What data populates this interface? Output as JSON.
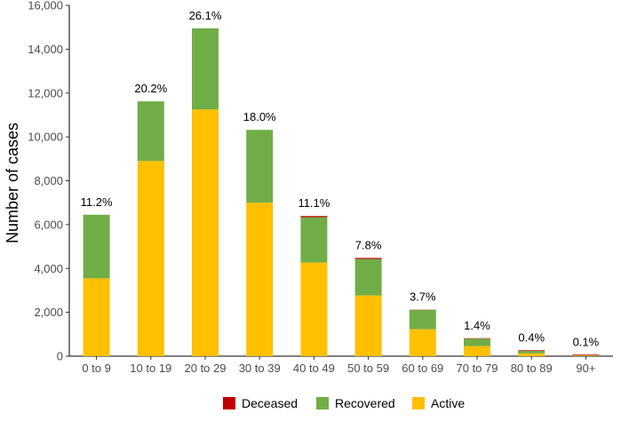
{
  "chart_data": {
    "type": "bar",
    "stacked": true,
    "title": "",
    "xlabel": "",
    "ylabel": "Number of cases",
    "ylim": [
      0,
      16000
    ],
    "yticks": [
      0,
      2000,
      4000,
      6000,
      8000,
      10000,
      12000,
      14000,
      16000
    ],
    "ytick_labels": [
      "0",
      "2,000",
      "4,000",
      "6,000",
      "8,000",
      "10,000",
      "12,000",
      "14,000",
      "16,000"
    ],
    "categories": [
      "0 to 9",
      "10 to 19",
      "20 to 29",
      "30 to 39",
      "40 to 49",
      "50 to 59",
      "60 to 69",
      "70 to 79",
      "80 to 89",
      "90+"
    ],
    "series": [
      {
        "name": "Active",
        "color": "#FFC000",
        "values": [
          3550,
          8900,
          11250,
          7000,
          4270,
          2770,
          1230,
          460,
          130,
          20
        ]
      },
      {
        "name": "Recovered",
        "color": "#70AD47",
        "values": [
          2900,
          2720,
          3700,
          3320,
          2070,
          1660,
          880,
          340,
          110,
          20
        ]
      },
      {
        "name": "Deceased",
        "color": "#C00000",
        "values": [
          0,
          0,
          0,
          0,
          50,
          50,
          10,
          20,
          30,
          30
        ]
      }
    ],
    "bar_labels": [
      "11.2%",
      "20.2%",
      "26.1%",
      "18.0%",
      "11.1%",
      "7.8%",
      "3.7%",
      "1.4%",
      "0.4%",
      "0.1%"
    ],
    "grid": false,
    "legend": {
      "placement": "bottom",
      "entries": [
        "Deceased",
        "Recovered",
        "Active"
      ]
    }
  }
}
